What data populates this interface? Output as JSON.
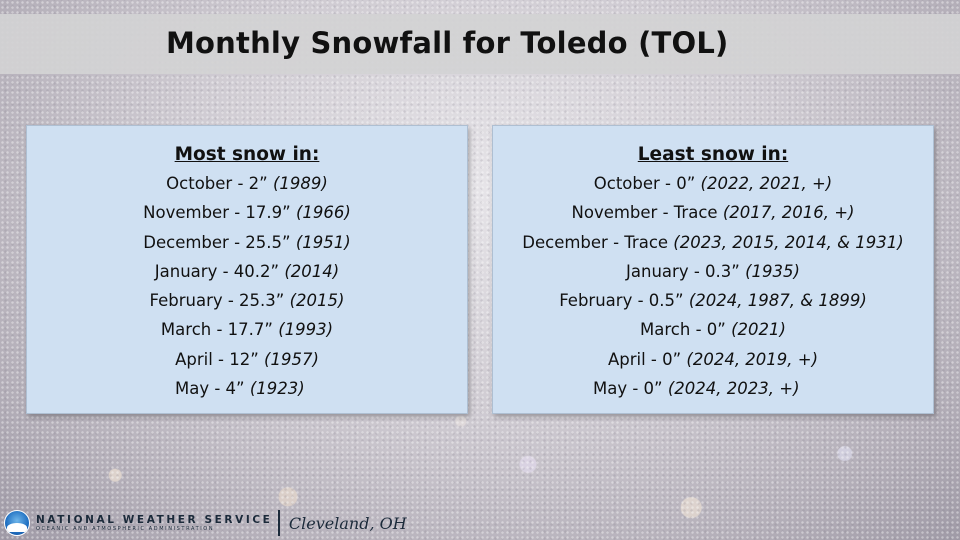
{
  "title": "Monthly Snowfall for Toledo (TOL)",
  "most": {
    "heading": "Most snow in:",
    "items": [
      {
        "text": "October - 2”",
        "years": "(1989)"
      },
      {
        "text": "November - 17.9”",
        "years": "(1966)"
      },
      {
        "text": "December - 25.5”",
        "years": "(1951)"
      },
      {
        "text": "January - 40.2”",
        "years": "(2014)"
      },
      {
        "text": "February - 25.3”",
        "years": "(2015)"
      },
      {
        "text": "March - 17.7”",
        "years": "(1993)"
      },
      {
        "text": "April - 12”",
        "years": "(1957)"
      },
      {
        "text": "May - 4”",
        "years": "(1923)"
      }
    ]
  },
  "least": {
    "heading": "Least snow in:",
    "items": [
      {
        "text": "October - 0”",
        "years": "(2022, 2021, +)"
      },
      {
        "text": "November - Trace",
        "years": "(2017, 2016, +)"
      },
      {
        "text": "December - Trace",
        "years": "(2023, 2015, 2014, & 1931)"
      },
      {
        "text": "January - 0.3”",
        "years": "(1935)"
      },
      {
        "text": "February - 0.5”",
        "years": "(2024, 1987, & 1899)"
      },
      {
        "text": "March - 0”",
        "years": "(2021)"
      },
      {
        "text": "April - 0”",
        "years": "(2024, 2019, +)"
      },
      {
        "text": "May -  0”",
        "years": "(2024, 2023, +)"
      }
    ]
  },
  "footer": {
    "org": "NATIONAL WEATHER SERVICE",
    "org_sub": "OCEANIC AND ATMOSPHERIC ADMINISTRATION",
    "office": "Cleveland, OH",
    "logo_icon": "noaa-logo-icon"
  }
}
